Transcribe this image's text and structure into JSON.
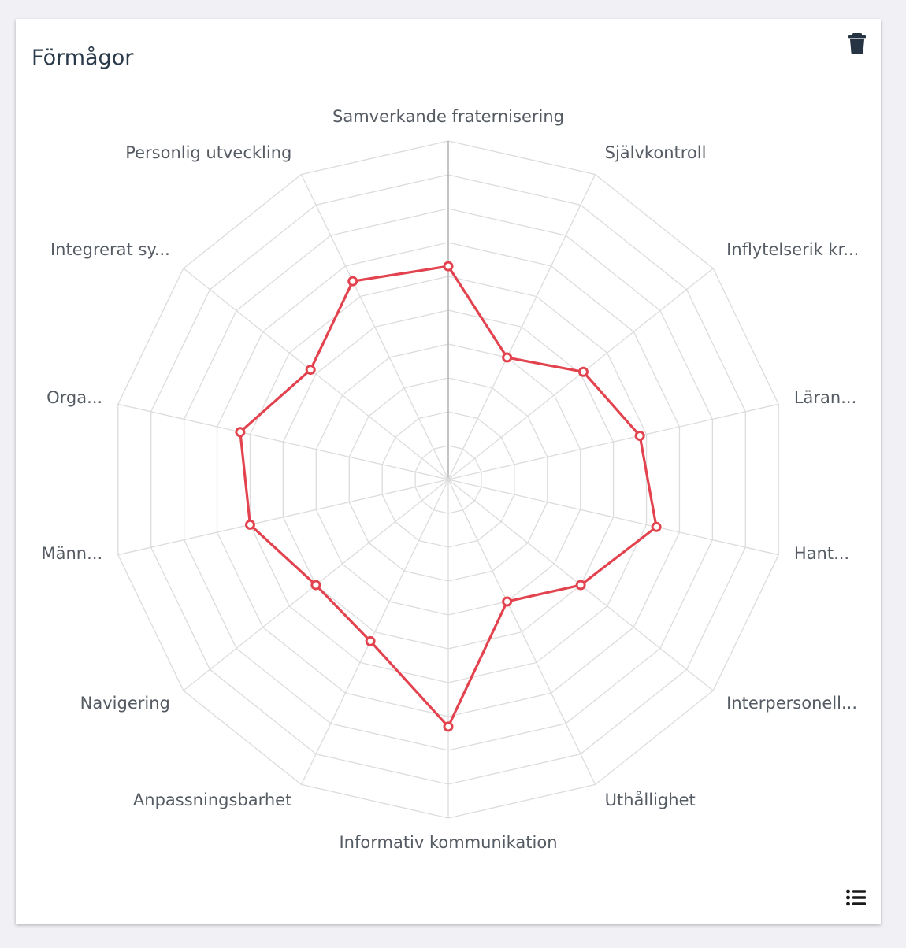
{
  "card": {
    "title": "Förmågor"
  },
  "icons": {
    "delete": "trash-icon",
    "list": "list-icon"
  },
  "colors": {
    "series": "#e2434e",
    "grid": "#dcdcdc",
    "axis_main": "#b5b5b5",
    "title": "#2b3a4a",
    "label": "#555b63"
  },
  "chart_data": {
    "type": "radar",
    "title": "Förmågor",
    "categories": [
      "Samverkande fraternisering",
      "Självkontroll",
      "Inflytelserik kr...",
      "Läran...",
      "Hant...",
      "Interpersonell...",
      "Uthållighet",
      "Informativ kommunikation",
      "Anpassningsbarhet",
      "Navigering",
      "Männ...",
      "Orga...",
      "Integrerat sy...",
      "Personlig utveckling"
    ],
    "series": [
      {
        "values": [
          6.3,
          4.0,
          5.1,
          5.8,
          6.3,
          5.0,
          4.0,
          7.3,
          5.3,
          5.0,
          6.0,
          6.3,
          5.2,
          6.5
        ]
      }
    ],
    "rlim": [
      0,
      10
    ],
    "grid_levels": 10,
    "grid": true,
    "legend": "none"
  }
}
